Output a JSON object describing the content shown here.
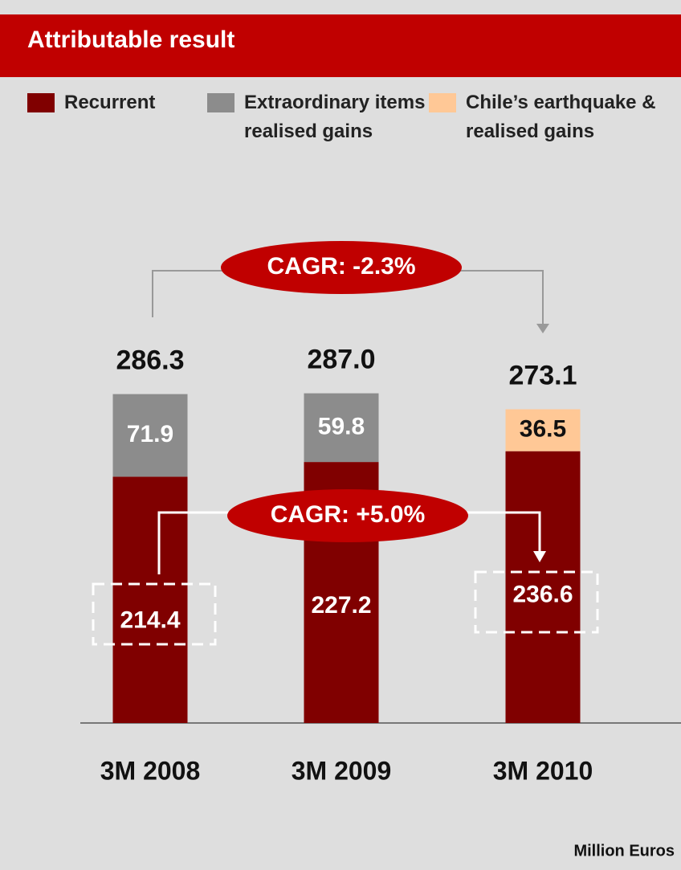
{
  "chart_data": {
    "type": "stacked_bar",
    "title": "Attributable result",
    "categories": [
      "3M 2008",
      "3M 2009",
      "3M 2010"
    ],
    "series": [
      {
        "name": "Recurrent",
        "color": "#800000",
        "values": [
          214.4,
          227.2,
          236.6
        ]
      },
      {
        "name": "Extraordinary items & realised gains",
        "color": "#8c8c8c",
        "values": [
          71.9,
          59.8,
          null
        ]
      },
      {
        "name": "Chile’s earthquake & realised gains",
        "color": "#ffc896",
        "values": [
          null,
          null,
          36.5
        ]
      }
    ],
    "totals": [
      286.3,
      287,
      273.1
    ],
    "total_labels": [
      "286.3",
      "287.0",
      "273.1"
    ],
    "annotations": [
      "CAGR: -2.3%",
      "CAGR: +5.0%"
    ],
    "note": "Million Euros"
  }
}
